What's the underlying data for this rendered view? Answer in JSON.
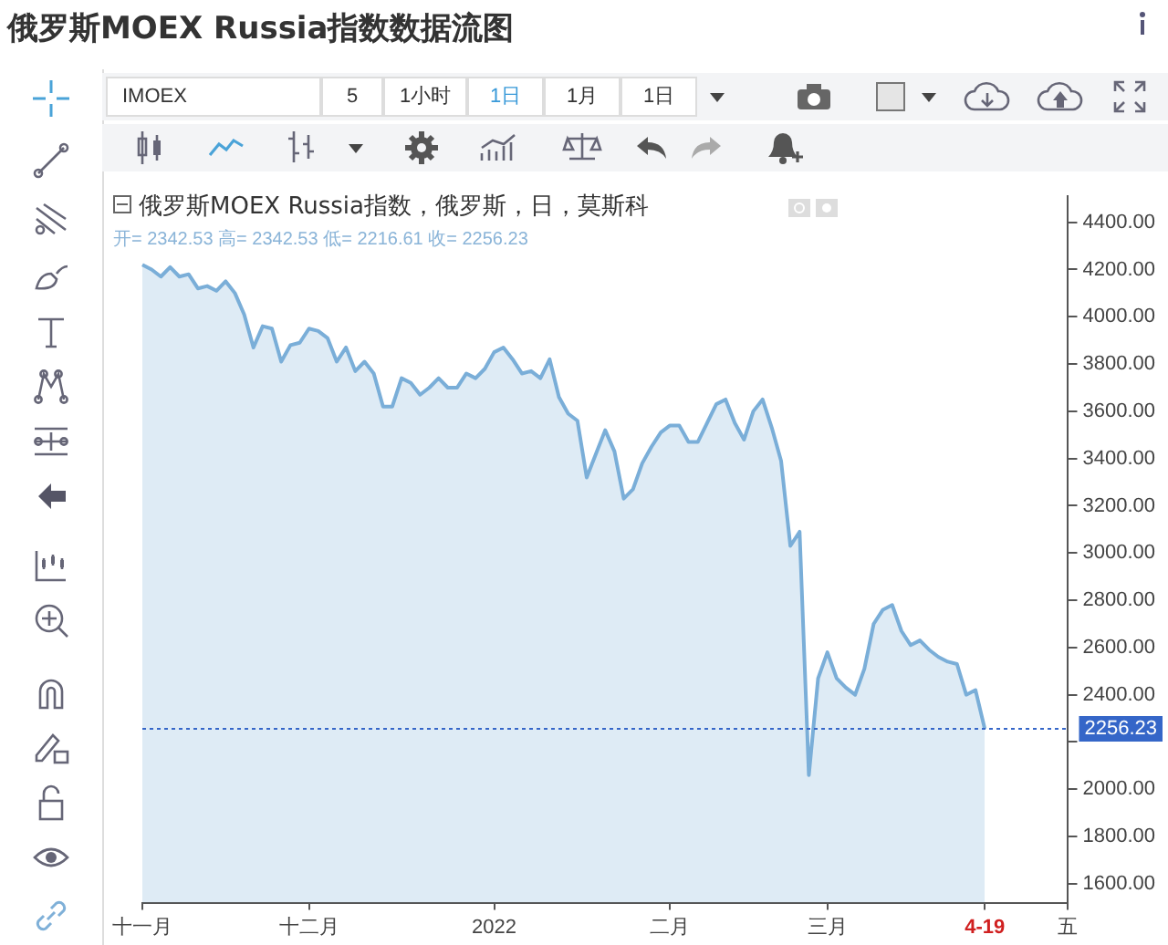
{
  "chart_data": {
    "type": "area",
    "title": "俄罗斯MOEX Russia指数数据流图",
    "subtitle": "俄罗斯MOEX Russia指数，俄罗斯，日，莫斯科",
    "annotations": [
      "开= 2342.53 高= 2342.53 低= 2216.61 收= 2256.23",
      "IMOEX",
      "5",
      "1小时",
      "1日",
      "1月",
      "1日"
    ],
    "categories": [
      "十一月",
      null,
      null,
      null,
      null,
      null,
      null,
      null,
      null,
      null,
      null,
      null,
      null,
      null,
      null,
      null,
      null,
      null,
      "十二月",
      null,
      null,
      null,
      null,
      null,
      null,
      null,
      null,
      null,
      null,
      null,
      null,
      null,
      null,
      null,
      null,
      null,
      null,
      null,
      "2022",
      null,
      null,
      null,
      null,
      null,
      null,
      null,
      null,
      null,
      null,
      null,
      null,
      null,
      null,
      null,
      null,
      null,
      null,
      "二月",
      null,
      null,
      null,
      null,
      null,
      null,
      null,
      null,
      null,
      null,
      null,
      null,
      null,
      null,
      null,
      null,
      "三月",
      null,
      null,
      null,
      null,
      null,
      null,
      null,
      null,
      null,
      null,
      null,
      null,
      null,
      null,
      null,
      null,
      "4-19",
      null,
      null,
      null,
      null,
      null,
      null,
      null,
      null,
      "五"
    ],
    "color": "#7aaed8",
    "values": [
      4220,
      4200,
      4170,
      4210,
      4170,
      4180,
      4120,
      4130,
      4110,
      4150,
      4100,
      4010,
      3870,
      3960,
      3950,
      3810,
      3880,
      3890,
      3950,
      3940,
      3910,
      3810,
      3870,
      3770,
      3810,
      3760,
      3620,
      3620,
      3740,
      3720,
      3670,
      3700,
      3740,
      3700,
      3700,
      3760,
      3740,
      3780,
      3850,
      3870,
      3820,
      3760,
      3770,
      3740,
      3820,
      3660,
      3590,
      3560,
      3320,
      3420,
      3520,
      3430,
      3230,
      3270,
      3380,
      3450,
      3510,
      3540,
      3540,
      3470,
      3470,
      3550,
      3630,
      3650,
      3550,
      3480,
      3600,
      3650,
      3530,
      3390,
      3030,
      3090,
      2060,
      2470,
      2580,
      2470,
      2430,
      2400,
      2510,
      2700,
      2760,
      2780,
      2670,
      2610,
      2630,
      2590,
      2560,
      2540,
      2530,
      2400,
      2420,
      2256.23,
      null,
      null,
      null,
      null,
      null,
      null,
      null,
      null,
      null
    ],
    "ylim": [
      1520,
      4510
    ],
    "yticks": [
      {
        "value": 1600,
        "label": "1600.00"
      },
      {
        "value": 1800,
        "label": "1800.00"
      },
      {
        "value": 2000,
        "label": "2000.00"
      },
      {
        "value": 2200,
        "label": null
      },
      {
        "value": 2400,
        "label": "2400.00"
      },
      {
        "value": 2600,
        "label": "2600.00"
      },
      {
        "value": 2800,
        "label": "2800.00"
      },
      {
        "value": 3000,
        "label": "3000.00"
      },
      {
        "value": 3200,
        "label": "3200.00"
      },
      {
        "value": 3400,
        "label": "3400.00"
      },
      {
        "value": 3600,
        "label": "3600.00"
      },
      {
        "value": 3800,
        "label": "3800.00"
      },
      {
        "value": 4000,
        "label": "4000.00"
      },
      {
        "value": 4200,
        "label": "4200.00"
      },
      {
        "value": 4400,
        "label": "4400.00"
      }
    ],
    "ref_lines": [
      {
        "axis": "y",
        "value": 2256.23,
        "label": "2256.23",
        "color": "#3566c8",
        "line_style": "dotted"
      }
    ]
  }
}
